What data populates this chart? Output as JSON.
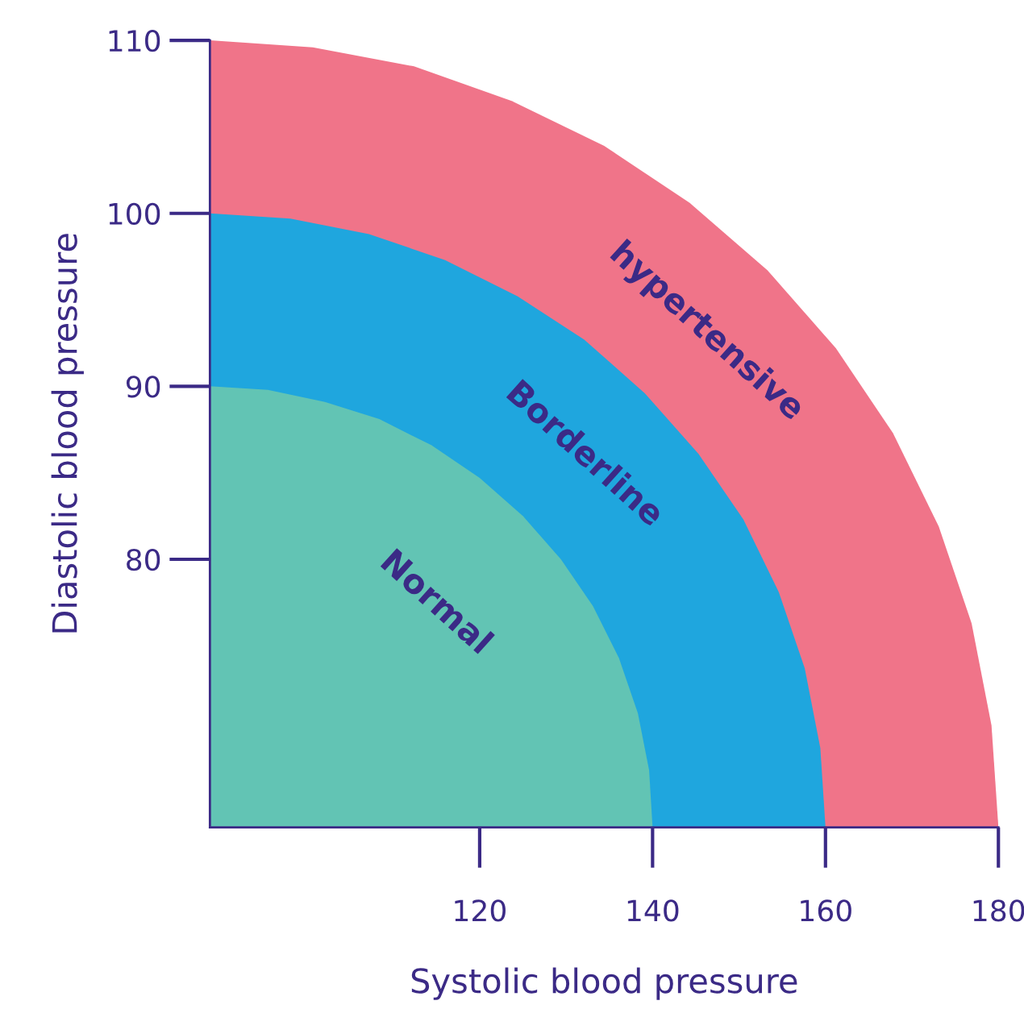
{
  "chart_data": {
    "type": "area",
    "xlabel": "Systolic blood pressure",
    "ylabel": "Diastolic blood pressure",
    "xlim": [
      88.8,
      180
    ],
    "ylim": [
      64.5,
      110
    ],
    "xticks": [
      120,
      140,
      160,
      180
    ],
    "yticks": [
      80,
      90,
      100,
      110
    ],
    "grid": false,
    "legend": false,
    "series": [
      {
        "name": "hypertensive",
        "color": "#f07489",
        "x": [
          180.0,
          179.2,
          176.9,
          173.1,
          167.8,
          161.2,
          153.3,
          144.3,
          134.4,
          123.7,
          112.4,
          100.7,
          88.8
        ],
        "values": [
          64.5,
          70.4,
          76.3,
          81.9,
          87.3,
          92.2,
          96.7,
          100.6,
          103.9,
          106.5,
          108.5,
          109.6,
          110.0
        ]
      },
      {
        "name": "Borderline",
        "color": "#1fa6de",
        "x": [
          160.0,
          159.4,
          157.6,
          154.6,
          150.5,
          145.3,
          139.1,
          132.1,
          124.4,
          116.0,
          107.2,
          98.1,
          88.8
        ],
        "values": [
          64.5,
          69.1,
          73.7,
          78.1,
          82.3,
          86.1,
          89.6,
          92.7,
          95.2,
          97.3,
          98.8,
          99.7,
          100.0
        ]
      },
      {
        "name": "Normal",
        "color": "#62c4b4",
        "x": [
          140.0,
          139.6,
          138.3,
          136.1,
          133.1,
          129.4,
          125.0,
          120.0,
          114.4,
          108.4,
          102.1,
          95.5,
          88.8
        ],
        "values": [
          64.5,
          67.8,
          71.1,
          74.3,
          77.3,
          80.0,
          82.5,
          84.7,
          86.6,
          88.1,
          89.1,
          89.8,
          90.0
        ]
      }
    ]
  }
}
